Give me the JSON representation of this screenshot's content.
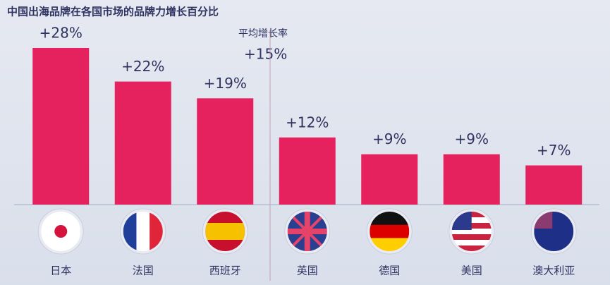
{
  "chart_data": {
    "type": "bar",
    "title": "中国出海品牌在各国市场的品牌力增长百分比",
    "categories": [
      "日本",
      "法国",
      "西班牙",
      "英国",
      "德国",
      "美国",
      "澳大利亚"
    ],
    "values": [
      28,
      22,
      19,
      12,
      9,
      9,
      7
    ],
    "value_labels": [
      "+28%",
      "+22%",
      "+19%",
      "+12%",
      "+9%",
      "+9%",
      "+7%"
    ],
    "color": "#e5215e",
    "annotation": {
      "text": "平均增长率",
      "value": 15,
      "value_label": "+15%"
    }
  }
}
